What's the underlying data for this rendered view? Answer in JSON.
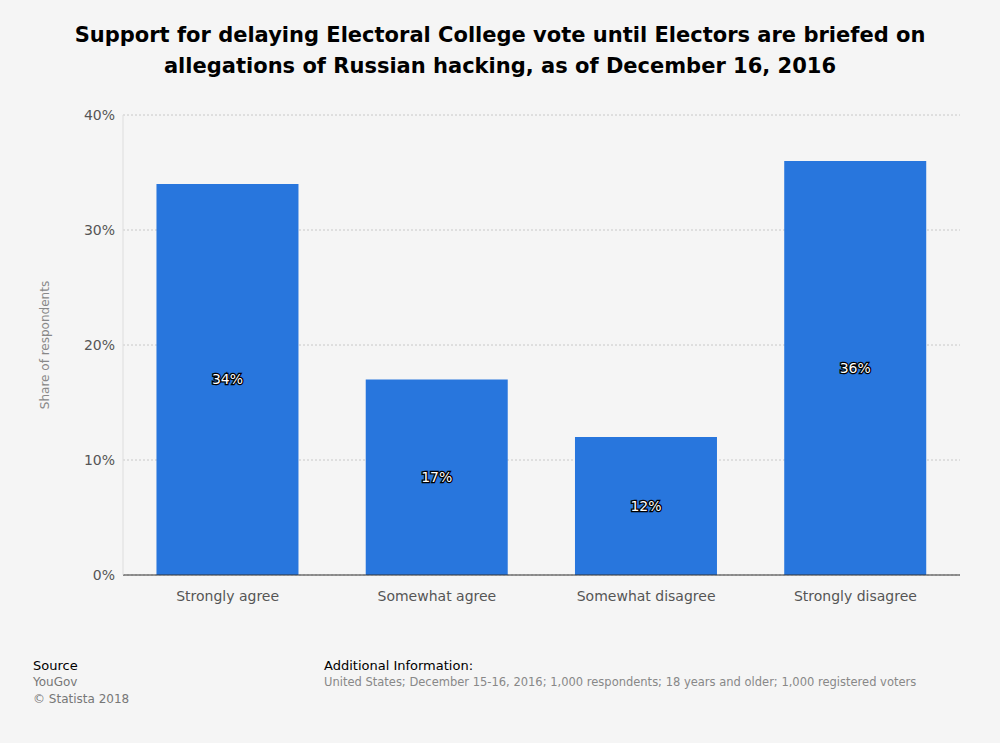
{
  "chart_data": {
    "type": "bar",
    "title": "Support for delaying Electoral College vote until Electors are briefed on allegations of Russian hacking, as of December 16, 2016",
    "y_label": "Share of respondents",
    "categories": [
      "Strongly agree",
      "Somewhat agree",
      "Somewhat disagree",
      "Strongly disagree"
    ],
    "values": [
      34,
      17,
      12,
      36
    ],
    "value_labels": [
      "34%",
      "17%",
      "12%",
      "36%"
    ],
    "data_labels": true,
    "color": "#2876dd",
    "ylim": [
      0,
      40
    ],
    "yticks": [
      {
        "value": 0,
        "label": "0%"
      },
      {
        "value": 10,
        "label": "10%"
      },
      {
        "value": 20,
        "label": "20%"
      },
      {
        "value": 30,
        "label": "30%"
      },
      {
        "value": 40,
        "label": "40%"
      }
    ],
    "grid": true,
    "legend": false,
    "source_label": "Source",
    "source": "YouGov",
    "copyright": "© Statista 2018",
    "info_label": "Additional Information:",
    "info": "United States; December 15-16, 2016; 1,000 respondents; 18 years and older; 1,000 registered voters"
  }
}
